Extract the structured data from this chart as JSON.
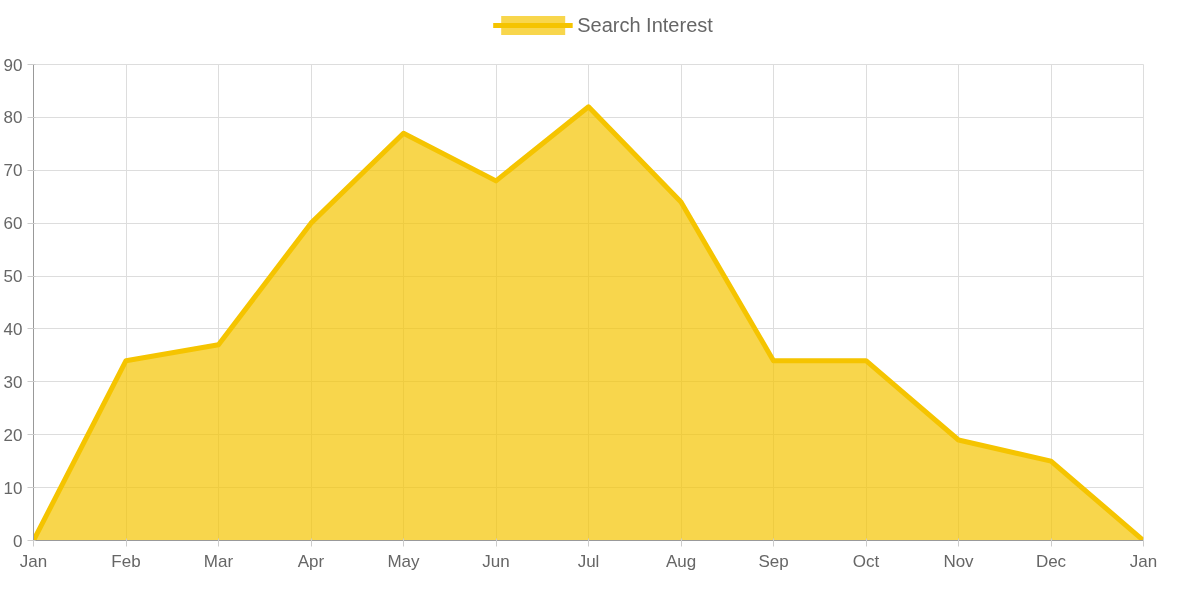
{
  "chart_data": {
    "type": "area",
    "categories": [
      "Jan",
      "Feb",
      "Mar",
      "Apr",
      "May",
      "Jun",
      "Jul",
      "Aug",
      "Sep",
      "Oct",
      "Nov",
      "Dec",
      "Jan"
    ],
    "series": [
      {
        "name": "Search Interest",
        "color": "#f5c400",
        "values": [
          0,
          34,
          37,
          60,
          77,
          68,
          82,
          64,
          34,
          34,
          19,
          15,
          0
        ]
      }
    ],
    "ylim": [
      0,
      90
    ],
    "yticks": [
      0,
      10,
      20,
      30,
      40,
      50,
      60,
      70,
      80,
      90
    ],
    "grid": true,
    "legend": "top"
  }
}
